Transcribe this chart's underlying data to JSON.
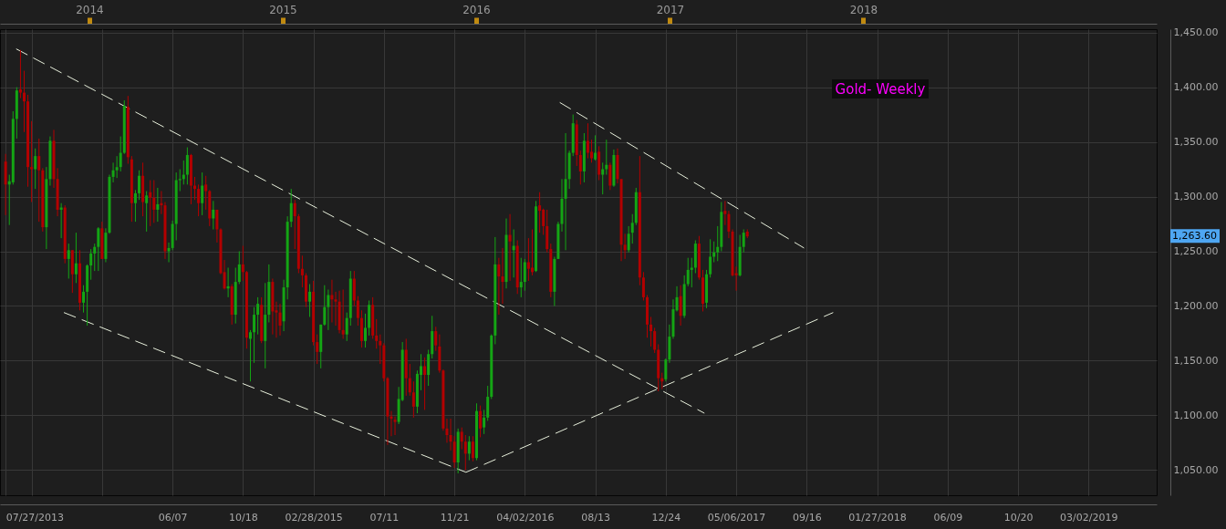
{
  "chart_data": {
    "type": "candlestick",
    "title": "Gold- Weekly",
    "x": [
      "2013-07-27",
      "2013-08-03",
      "2013-08-10",
      "2013-08-17",
      "2013-08-24",
      "2013-08-31",
      "2013-09-07",
      "2013-09-14",
      "2013-09-21",
      "2013-09-28",
      "2013-10-05",
      "2013-10-12",
      "2013-10-19",
      "2013-10-26",
      "2013-11-02",
      "2013-11-09",
      "2013-11-16",
      "2013-11-23",
      "2013-11-30",
      "2013-12-07",
      "2013-12-14",
      "2013-12-21",
      "2013-12-28",
      "2014-01-04",
      "2014-01-11",
      "2014-01-18",
      "2014-01-25",
      "2014-02-01",
      "2014-02-08",
      "2014-02-15",
      "2014-02-22",
      "2014-03-01",
      "2014-03-08",
      "2014-03-15",
      "2014-03-22",
      "2014-03-29",
      "2014-04-05",
      "2014-04-12",
      "2014-04-19",
      "2014-04-26",
      "2014-05-03",
      "2014-05-10",
      "2014-05-17",
      "2014-05-24",
      "2014-05-31",
      "2014-06-07",
      "2014-06-14",
      "2014-06-21",
      "2014-06-28",
      "2014-07-05",
      "2014-07-12",
      "2014-07-19",
      "2014-07-26",
      "2014-08-02",
      "2014-08-09",
      "2014-08-16",
      "2014-08-23",
      "2014-08-30",
      "2014-09-06",
      "2014-09-13",
      "2014-09-20",
      "2014-09-27",
      "2014-10-04",
      "2014-10-11",
      "2014-10-18",
      "2014-10-25",
      "2014-11-01",
      "2014-11-08",
      "2014-11-15",
      "2014-11-22",
      "2014-11-29",
      "2014-12-06",
      "2014-12-13",
      "2014-12-20",
      "2014-12-27",
      "2015-01-03",
      "2015-01-10",
      "2015-01-17",
      "2015-01-24",
      "2015-01-31",
      "2015-02-07",
      "2015-02-14",
      "2015-02-21",
      "2015-02-28",
      "2015-03-07",
      "2015-03-14",
      "2015-03-21",
      "2015-03-28",
      "2015-04-04",
      "2015-04-11",
      "2015-04-18",
      "2015-04-25",
      "2015-05-02",
      "2015-05-09",
      "2015-05-16",
      "2015-05-23",
      "2015-05-30",
      "2015-06-06",
      "2015-06-13",
      "2015-06-20",
      "2015-06-27",
      "2015-07-04",
      "2015-07-11",
      "2015-07-18",
      "2015-07-25",
      "2015-08-01",
      "2015-08-08",
      "2015-08-15",
      "2015-08-22",
      "2015-08-29",
      "2015-09-05",
      "2015-09-12",
      "2015-09-19",
      "2015-09-26",
      "2015-10-03",
      "2015-10-10",
      "2015-10-17",
      "2015-10-24",
      "2015-10-31",
      "2015-11-07",
      "2015-11-14",
      "2015-11-21",
      "2015-11-28",
      "2015-12-05",
      "2015-12-12",
      "2015-12-19",
      "2015-12-26",
      "2016-01-02",
      "2016-01-09",
      "2016-01-16",
      "2016-01-23",
      "2016-01-30",
      "2016-02-06",
      "2016-02-13",
      "2016-02-20",
      "2016-02-27",
      "2016-03-05",
      "2016-03-12",
      "2016-03-19",
      "2016-03-26",
      "2016-04-02",
      "2016-04-09",
      "2016-04-16",
      "2016-04-23",
      "2016-04-30",
      "2016-05-07",
      "2016-05-14",
      "2016-05-21",
      "2016-05-28",
      "2016-06-04",
      "2016-06-11",
      "2016-06-18",
      "2016-06-25",
      "2016-07-02",
      "2016-07-09",
      "2016-07-16",
      "2016-07-23",
      "2016-07-30",
      "2016-08-06",
      "2016-08-13",
      "2016-08-20",
      "2016-08-27",
      "2016-09-03",
      "2016-09-10",
      "2016-09-17",
      "2016-09-24",
      "2016-10-01",
      "2016-10-08",
      "2016-10-15",
      "2016-10-22",
      "2016-10-29",
      "2016-11-05",
      "2016-11-12",
      "2016-11-19",
      "2016-11-26",
      "2016-12-03",
      "2016-12-10",
      "2016-12-17",
      "2016-12-24",
      "2016-12-31",
      "2017-01-07",
      "2017-01-14",
      "2017-01-21",
      "2017-01-28",
      "2017-02-04",
      "2017-02-11",
      "2017-02-18",
      "2017-02-25",
      "2017-03-04",
      "2017-03-11",
      "2017-03-18",
      "2017-03-25",
      "2017-04-01",
      "2017-04-08",
      "2017-04-15",
      "2017-04-22",
      "2017-04-29",
      "2017-05-06",
      "2017-05-13",
      "2017-05-20",
      "2017-05-27"
    ],
    "ohlc": [
      [
        1332,
        1339,
        1283,
        1311
      ],
      [
        1311,
        1320,
        1274,
        1314
      ],
      [
        1313,
        1378,
        1311,
        1371
      ],
      [
        1371,
        1400,
        1353,
        1397
      ],
      [
        1398,
        1434,
        1390,
        1395
      ],
      [
        1395,
        1415,
        1359,
        1387
      ],
      [
        1387,
        1393,
        1309,
        1327
      ],
      [
        1327,
        1369,
        1295,
        1325
      ],
      [
        1325,
        1344,
        1307,
        1337
      ],
      [
        1337,
        1353,
        1277,
        1324
      ],
      [
        1324,
        1326,
        1268,
        1272
      ],
      [
        1272,
        1327,
        1252,
        1316
      ],
      [
        1316,
        1355,
        1310,
        1351
      ],
      [
        1351,
        1361,
        1308,
        1316
      ],
      [
        1316,
        1326,
        1282,
        1288
      ],
      [
        1288,
        1294,
        1262,
        1290
      ],
      [
        1290,
        1292,
        1239,
        1243
      ],
      [
        1243,
        1257,
        1225,
        1251
      ],
      [
        1251,
        1251,
        1212,
        1229
      ],
      [
        1229,
        1267,
        1221,
        1239
      ],
      [
        1239,
        1251,
        1196,
        1203
      ],
      [
        1203,
        1219,
        1194,
        1213
      ],
      [
        1213,
        1238,
        1182,
        1237
      ],
      [
        1237,
        1252,
        1224,
        1248
      ],
      [
        1248,
        1257,
        1232,
        1254
      ],
      [
        1254,
        1272,
        1232,
        1271
      ],
      [
        1271,
        1277,
        1243,
        1243
      ],
      [
        1243,
        1271,
        1240,
        1267
      ],
      [
        1267,
        1320,
        1266,
        1318
      ],
      [
        1318,
        1331,
        1313,
        1324
      ],
      [
        1324,
        1337,
        1317,
        1327
      ],
      [
        1327,
        1355,
        1323,
        1340
      ],
      [
        1340,
        1388,
        1339,
        1383
      ],
      [
        1382,
        1392,
        1330,
        1336
      ],
      [
        1334,
        1337,
        1277,
        1294
      ],
      [
        1294,
        1306,
        1277,
        1303
      ],
      [
        1303,
        1324,
        1297,
        1319
      ],
      [
        1319,
        1331,
        1282,
        1295
      ],
      [
        1294,
        1305,
        1268,
        1301
      ],
      [
        1304,
        1315,
        1273,
        1299
      ],
      [
        1299,
        1315,
        1276,
        1288
      ],
      [
        1288,
        1308,
        1277,
        1293
      ],
      [
        1294,
        1305,
        1284,
        1292
      ],
      [
        1292,
        1295,
        1243,
        1250
      ],
      [
        1250,
        1258,
        1240,
        1253
      ],
      [
        1253,
        1278,
        1251,
        1275
      ],
      [
        1275,
        1322,
        1260,
        1315
      ],
      [
        1315,
        1325,
        1305,
        1316
      ],
      [
        1316,
        1333,
        1311,
        1320
      ],
      [
        1320,
        1345,
        1311,
        1338
      ],
      [
        1338,
        1339,
        1293,
        1310
      ],
      [
        1310,
        1318,
        1297,
        1307
      ],
      [
        1307,
        1311,
        1282,
        1294
      ],
      [
        1294,
        1322,
        1283,
        1310
      ],
      [
        1311,
        1319,
        1288,
        1305
      ],
      [
        1305,
        1306,
        1273,
        1280
      ],
      [
        1280,
        1296,
        1270,
        1288
      ],
      [
        1288,
        1288,
        1258,
        1270
      ],
      [
        1270,
        1271,
        1229,
        1230
      ],
      [
        1231,
        1242,
        1215,
        1216
      ],
      [
        1216,
        1235,
        1208,
        1218
      ],
      [
        1218,
        1220,
        1183,
        1192
      ],
      [
        1192,
        1235,
        1184,
        1222
      ],
      [
        1222,
        1250,
        1220,
        1238
      ],
      [
        1238,
        1255,
        1223,
        1231
      ],
      [
        1231,
        1232,
        1161,
        1171
      ],
      [
        1170,
        1178,
        1131,
        1176
      ],
      [
        1176,
        1199,
        1148,
        1192
      ],
      [
        1192,
        1208,
        1174,
        1202
      ],
      [
        1201,
        1208,
        1166,
        1168
      ],
      [
        1168,
        1221,
        1143,
        1192
      ],
      [
        1192,
        1238,
        1185,
        1222
      ],
      [
        1222,
        1225,
        1174,
        1195
      ],
      [
        1196,
        1204,
        1171,
        1194
      ],
      [
        1194,
        1202,
        1173,
        1182
      ],
      [
        1186,
        1224,
        1177,
        1217
      ],
      [
        1217,
        1282,
        1206,
        1277
      ],
      [
        1277,
        1307,
        1272,
        1294
      ],
      [
        1294,
        1297,
        1252,
        1282
      ],
      [
        1282,
        1284,
        1230,
        1234
      ],
      [
        1234,
        1246,
        1217,
        1228
      ],
      [
        1228,
        1230,
        1199,
        1204
      ],
      [
        1204,
        1220,
        1190,
        1213
      ],
      [
        1213,
        1223,
        1164,
        1167
      ],
      [
        1167,
        1174,
        1147,
        1158
      ],
      [
        1158,
        1183,
        1143,
        1183
      ],
      [
        1183,
        1219,
        1182,
        1199
      ],
      [
        1199,
        1215,
        1178,
        1210
      ],
      [
        1210,
        1224,
        1185,
        1206
      ],
      [
        1206,
        1213,
        1182,
        1204
      ],
      [
        1204,
        1214,
        1175,
        1178
      ],
      [
        1178,
        1215,
        1170,
        1174
      ],
      [
        1174,
        1194,
        1168,
        1189
      ],
      [
        1189,
        1232,
        1182,
        1225
      ],
      [
        1225,
        1232,
        1200,
        1205
      ],
      [
        1205,
        1209,
        1182,
        1189
      ],
      [
        1189,
        1196,
        1162,
        1168
      ],
      [
        1168,
        1193,
        1162,
        1180
      ],
      [
        1180,
        1205,
        1173,
        1201
      ],
      [
        1201,
        1208,
        1170,
        1173
      ],
      [
        1173,
        1188,
        1161,
        1168
      ],
      [
        1168,
        1174,
        1147,
        1164
      ],
      [
        1164,
        1166,
        1131,
        1134
      ],
      [
        1134,
        1135,
        1073,
        1099
      ],
      [
        1099,
        1104,
        1081,
        1097
      ],
      [
        1096,
        1099,
        1082,
        1094
      ],
      [
        1094,
        1126,
        1092,
        1115
      ],
      [
        1114,
        1167,
        1113,
        1160
      ],
      [
        1160,
        1170,
        1118,
        1134
      ],
      [
        1134,
        1147,
        1118,
        1121
      ],
      [
        1121,
        1131,
        1098,
        1108
      ],
      [
        1108,
        1141,
        1102,
        1138
      ],
      [
        1137,
        1156,
        1123,
        1145
      ],
      [
        1145,
        1153,
        1105,
        1137
      ],
      [
        1137,
        1160,
        1127,
        1156
      ],
      [
        1156,
        1191,
        1152,
        1177
      ],
      [
        1177,
        1181,
        1159,
        1164
      ],
      [
        1163,
        1174,
        1139,
        1141
      ],
      [
        1141,
        1142,
        1086,
        1088
      ],
      [
        1088,
        1097,
        1075,
        1082
      ],
      [
        1082,
        1097,
        1068,
        1076
      ],
      [
        1076,
        1081,
        1052,
        1057
      ],
      [
        1057,
        1088,
        1047,
        1085
      ],
      [
        1085,
        1089,
        1069,
        1076
      ],
      [
        1076,
        1082,
        1050,
        1065
      ],
      [
        1065,
        1081,
        1059,
        1076
      ],
      [
        1076,
        1081,
        1058,
        1061
      ],
      [
        1061,
        1111,
        1059,
        1104
      ],
      [
        1104,
        1109,
        1080,
        1088
      ],
      [
        1089,
        1105,
        1083,
        1098
      ],
      [
        1098,
        1127,
        1095,
        1117
      ],
      [
        1117,
        1174,
        1115,
        1173
      ],
      [
        1173,
        1263,
        1165,
        1238
      ],
      [
        1238,
        1244,
        1192,
        1227
      ],
      [
        1227,
        1253,
        1202,
        1222
      ],
      [
        1222,
        1280,
        1216,
        1265
      ],
      [
        1265,
        1284,
        1223,
        1259
      ],
      [
        1251,
        1270,
        1226,
        1255
      ],
      [
        1255,
        1260,
        1211,
        1217
      ],
      [
        1217,
        1244,
        1208,
        1222
      ],
      [
        1222,
        1243,
        1214,
        1240
      ],
      [
        1240,
        1262,
        1223,
        1234
      ],
      [
        1235,
        1270,
        1228,
        1231
      ],
      [
        1232,
        1296,
        1231,
        1291
      ],
      [
        1292,
        1304,
        1267,
        1287
      ],
      [
        1288,
        1289,
        1265,
        1273
      ],
      [
        1273,
        1288,
        1249,
        1252
      ],
      [
        1252,
        1257,
        1208,
        1213
      ],
      [
        1213,
        1245,
        1200,
        1243
      ],
      [
        1243,
        1277,
        1243,
        1275
      ],
      [
        1275,
        1316,
        1268,
        1298
      ],
      [
        1298,
        1358,
        1251,
        1316
      ],
      [
        1316,
        1342,
        1307,
        1340
      ],
      [
        1340,
        1375,
        1337,
        1367
      ],
      [
        1366,
        1370,
        1328,
        1338
      ],
      [
        1338,
        1342,
        1311,
        1323
      ],
      [
        1323,
        1358,
        1313,
        1351
      ],
      [
        1351,
        1367,
        1335,
        1340
      ],
      [
        1341,
        1352,
        1331,
        1335
      ],
      [
        1334,
        1356,
        1333,
        1340
      ],
      [
        1341,
        1346,
        1315,
        1320
      ],
      [
        1320,
        1331,
        1302,
        1325
      ],
      [
        1325,
        1352,
        1320,
        1329
      ],
      [
        1329,
        1331,
        1306,
        1310
      ],
      [
        1310,
        1343,
        1309,
        1338
      ],
      [
        1338,
        1344,
        1312,
        1316
      ],
      [
        1316,
        1316,
        1241,
        1256
      ],
      [
        1256,
        1266,
        1243,
        1251
      ],
      [
        1251,
        1273,
        1249,
        1266
      ],
      [
        1267,
        1284,
        1257,
        1276
      ],
      [
        1276,
        1308,
        1274,
        1304
      ],
      [
        1304,
        1337,
        1219,
        1226
      ],
      [
        1226,
        1231,
        1205,
        1208
      ],
      [
        1208,
        1210,
        1171,
        1183
      ],
      [
        1183,
        1190,
        1163,
        1177
      ],
      [
        1177,
        1180,
        1157,
        1160
      ],
      [
        1160,
        1165,
        1122,
        1134
      ],
      [
        1134,
        1139,
        1124,
        1131
      ],
      [
        1133,
        1152,
        1131,
        1151
      ],
      [
        1151,
        1183,
        1148,
        1172
      ],
      [
        1172,
        1206,
        1170,
        1197
      ],
      [
        1196,
        1218,
        1195,
        1208
      ],
      [
        1209,
        1219,
        1182,
        1191
      ],
      [
        1191,
        1228,
        1189,
        1220
      ],
      [
        1220,
        1244,
        1218,
        1233
      ],
      [
        1233,
        1244,
        1217,
        1235
      ],
      [
        1235,
        1260,
        1230,
        1257
      ],
      [
        1257,
        1264,
        1224,
        1226
      ],
      [
        1226,
        1233,
        1195,
        1202
      ],
      [
        1203,
        1233,
        1198,
        1229
      ],
      [
        1229,
        1261,
        1226,
        1245
      ],
      [
        1245,
        1259,
        1240,
        1249
      ],
      [
        1249,
        1273,
        1241,
        1254
      ],
      [
        1254,
        1295,
        1250,
        1286
      ],
      [
        1287,
        1296,
        1274,
        1284
      ],
      [
        1284,
        1287,
        1262,
        1268
      ],
      [
        1268,
        1270,
        1227,
        1228
      ],
      [
        1230,
        1236,
        1214,
        1228
      ],
      [
        1228,
        1265,
        1227,
        1254
      ],
      [
        1254,
        1270,
        1249,
        1267
      ],
      [
        1268,
        1270,
        1262,
        1263.6
      ]
    ],
    "colors": [
      "#b30000",
      "#14a514",
      "#14a514",
      "#14a514",
      "#b30000",
      "#b30000",
      "#b30000",
      "#b30000",
      "#14a514",
      "#b30000",
      "#b30000",
      "#14a514",
      "#14a514",
      "#b30000",
      "#b30000",
      "#14a514",
      "#b30000",
      "#14a514",
      "#b30000",
      "#14a514",
      "#b30000",
      "#14a514",
      "#14a514",
      "#14a514",
      "#14a514",
      "#14a514",
      "#b30000",
      "#14a514",
      "#14a514",
      "#14a514",
      "#14a514",
      "#14a514",
      "#14a514",
      "#b30000",
      "#b30000",
      "#14a514",
      "#14a514",
      "#b30000",
      "#14a514",
      "#b30000",
      "#b30000",
      "#14a514",
      "#b30000",
      "#b30000",
      "#14a514",
      "#14a514",
      "#14a514",
      "#14a514",
      "#14a514",
      "#14a514",
      "#b30000",
      "#b30000",
      "#b30000",
      "#14a514",
      "#b30000",
      "#b30000",
      "#14a514",
      "#b30000",
      "#b30000",
      "#b30000",
      "#14a514",
      "#b30000",
      "#14a514",
      "#14a514",
      "#b30000",
      "#b30000",
      "#14a514",
      "#14a514",
      "#14a514",
      "#b30000",
      "#14a514",
      "#14a514",
      "#b30000",
      "#b30000",
      "#b30000",
      "#14a514",
      "#14a514",
      "#14a514",
      "#b30000",
      "#b30000",
      "#b30000",
      "#b30000",
      "#14a514",
      "#b30000",
      "#b30000",
      "#14a514",
      "#14a514",
      "#14a514",
      "#b30000",
      "#b30000",
      "#b30000",
      "#b30000",
      "#14a514",
      "#14a514",
      "#b30000",
      "#b30000",
      "#b30000",
      "#14a514",
      "#14a514",
      "#b30000",
      "#b30000",
      "#b30000",
      "#b30000",
      "#b30000",
      "#b30000",
      "#b30000",
      "#14a514",
      "#14a514",
      "#b30000",
      "#b30000",
      "#b30000",
      "#14a514",
      "#14a514",
      "#b30000",
      "#14a514",
      "#14a514",
      "#b30000",
      "#b30000",
      "#b30000",
      "#b30000",
      "#b30000",
      "#b30000",
      "#14a514",
      "#b30000",
      "#b30000",
      "#14a514",
      "#b30000",
      "#14a514",
      "#b30000",
      "#14a514",
      "#14a514",
      "#14a514",
      "#14a514",
      "#b30000",
      "#b30000",
      "#14a514",
      "#b30000",
      "#14a514",
      "#b30000",
      "#14a514",
      "#14a514",
      "#b30000",
      "#b30000",
      "#14a514",
      "#b30000",
      "#b30000",
      "#b30000",
      "#b30000",
      "#14a514",
      "#14a514",
      "#14a514",
      "#14a514",
      "#14a514",
      "#14a514",
      "#b30000",
      "#b30000",
      "#14a514",
      "#b30000",
      "#b30000",
      "#14a514",
      "#b30000",
      "#14a514",
      "#14a514",
      "#b30000",
      "#14a514",
      "#b30000",
      "#b30000",
      "#b30000",
      "#14a514",
      "#14a514",
      "#14a514",
      "#b30000",
      "#b30000",
      "#b30000",
      "#b30000",
      "#b30000",
      "#b30000",
      "#b30000",
      "#14a514",
      "#14a514",
      "#14a514",
      "#14a514",
      "#b30000",
      "#14a514",
      "#14a514",
      "#14a514",
      "#14a514",
      "#b30000",
      "#b30000",
      "#14a514",
      "#14a514",
      "#14a514",
      "#14a514",
      "#14a514",
      "#b30000",
      "#b30000",
      "#b30000",
      "#b30000",
      "#14a514",
      "#14a514",
      "#b30000"
    ],
    "series": [
      {
        "type": "line",
        "x": [
          "2013-08-16",
          "2017-03-07"
        ],
        "values": [
          1435,
          1102
        ],
        "color": "#e8f0dc",
        "line_style": "dashed"
      },
      {
        "type": "line",
        "x": [
          "2013-11-14",
          "2015-12-13"
        ],
        "values": [
          1194,
          1048
        ],
        "color": "#e8f0dc",
        "line_style": "dashed"
      },
      {
        "type": "line",
        "x": [
          "2015-12-13",
          "2017-11-05"
        ],
        "values": [
          1048,
          1194
        ],
        "color": "#e8f0dc",
        "line_style": "dashed"
      },
      {
        "type": "line",
        "x": [
          "2016-06-07",
          "2017-09-11"
        ],
        "values": [
          1386,
          1253
        ],
        "color": "#e8f0dc",
        "line_style": "dashed"
      }
    ],
    "xlim": [
      "2013-07-25",
      "2019-06-30"
    ],
    "xticks": [
      {
        "value": "2013-07-27",
        "label": "07/27/2013"
      },
      {
        "value": "2013-09-14",
        "label": null
      },
      {
        "value": "2014-01-25",
        "label": null
      },
      {
        "value": "2014-06-07",
        "label": "06/07"
      },
      {
        "value": "2014-10-18",
        "label": "10/18"
      },
      {
        "value": "2015-02-28",
        "label": "02/28/2015"
      },
      {
        "value": "2015-07-11",
        "label": "07/11"
      },
      {
        "value": "2015-11-21",
        "label": "11/21"
      },
      {
        "value": "2016-04-02",
        "label": "04/02/2016"
      },
      {
        "value": "2016-08-13",
        "label": "08/13"
      },
      {
        "value": "2016-12-24",
        "label": "12/24"
      },
      {
        "value": "2017-05-06",
        "label": "05/06/2017"
      },
      {
        "value": "2017-09-16",
        "label": "09/16"
      },
      {
        "value": "2018-01-27",
        "label": "01/27/2018"
      },
      {
        "value": "2018-06-09",
        "label": "06/09"
      },
      {
        "value": "2018-10-20",
        "label": "10/20"
      },
      {
        "value": "2019-03-02",
        "label": "03/02/2019"
      }
    ],
    "x2lim": [
      "2013-07-25",
      "2019-06-30"
    ],
    "x2ticks": [
      "2014",
      "2015",
      "2016",
      "2017",
      "2018"
    ],
    "ylim": [
      1027,
      1453
    ],
    "yticks": [
      {
        "value": 1050,
        "label": "1,050.00"
      },
      {
        "value": 1100,
        "label": "1,100.00"
      },
      {
        "value": 1150,
        "label": "1,150.00"
      },
      {
        "value": 1200,
        "label": "1,200.00"
      },
      {
        "value": 1250,
        "label": "1,250.00"
      },
      {
        "value": 1300,
        "label": "1,300.00"
      },
      {
        "value": 1350,
        "label": "1,350.00"
      },
      {
        "value": 1400,
        "label": "1,400.00"
      },
      {
        "value": 1450,
        "label": "1,450.00"
      }
    ],
    "grid": true,
    "annotations": [
      "1,263.60"
    ]
  }
}
